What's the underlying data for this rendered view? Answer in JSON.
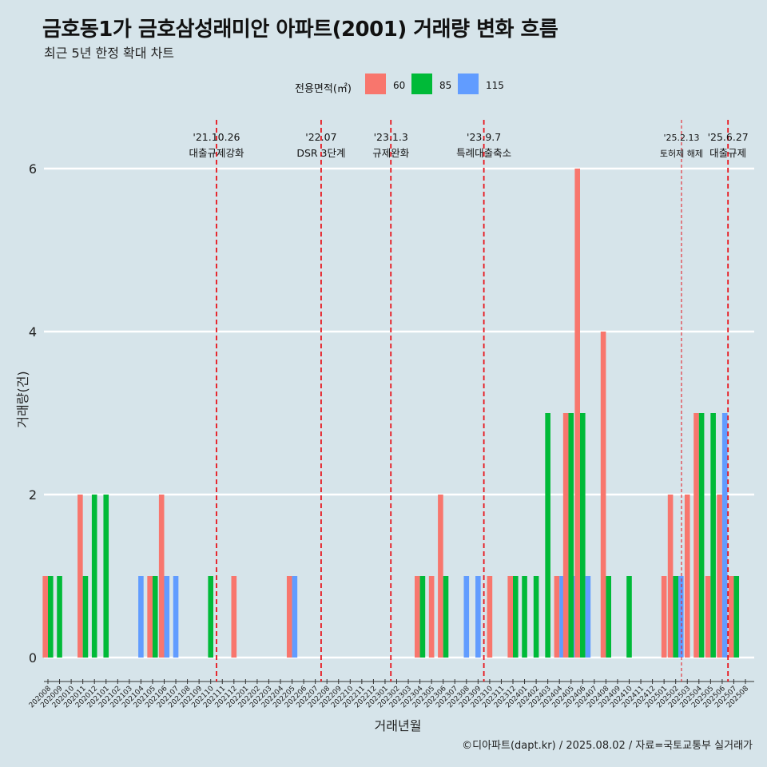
{
  "title": "금호동1가 금호삼성래미안 아파트(2001) 거래량 변화 흐름",
  "subtitle": "최근 5년 한정 확대 차트",
  "caption": "©디아파트(dapt.kr) / 2025.08.02 / 자료=국토교통부 실거래가",
  "legend": {
    "title": "전용면적(㎡)",
    "items": [
      {
        "label": "60",
        "color": "#f8766d"
      },
      {
        "label": "85",
        "color": "#00ba38"
      },
      {
        "label": "115",
        "color": "#619cff"
      }
    ]
  },
  "chart_data": {
    "type": "bar",
    "xlabel": "거래년월",
    "ylabel": "거래량(건)",
    "ylim": [
      0,
      6.3
    ],
    "yticks": [
      0,
      2,
      4,
      6
    ],
    "grid": "horizontal",
    "legend_position": "top",
    "categories": [
      "202008",
      "202009",
      "202010",
      "202011",
      "202012",
      "202101",
      "202102",
      "202103",
      "202104",
      "202105",
      "202106",
      "202107",
      "202108",
      "202109",
      "202110",
      "202111",
      "202112",
      "202201",
      "202202",
      "202203",
      "202204",
      "202205",
      "202206",
      "202207",
      "202208",
      "202209",
      "202210",
      "202211",
      "202212",
      "202301",
      "202302",
      "202303",
      "202304",
      "202305",
      "202306",
      "202307",
      "202308",
      "202309",
      "202310",
      "202311",
      "202312",
      "202401",
      "202402",
      "202403",
      "202404",
      "202405",
      "202406",
      "202407",
      "202408",
      "202409",
      "202410",
      "202411",
      "202412",
      "202501",
      "202502",
      "202503",
      "202504",
      "202505",
      "202506",
      "202507",
      "202508"
    ],
    "series": [
      {
        "name": "60",
        "color": "#f8766d",
        "values": [
          1,
          0,
          0,
          2,
          0,
          0,
          0,
          0,
          0,
          1,
          2,
          0,
          0,
          0,
          0,
          0,
          1,
          0,
          0,
          0,
          0,
          1,
          0,
          0,
          0,
          0,
          0,
          0,
          0,
          0,
          0,
          0,
          1,
          1,
          2,
          0,
          0,
          0,
          1,
          0,
          1,
          0,
          0,
          0,
          1,
          3,
          6,
          0,
          4,
          0,
          0,
          0,
          0,
          1,
          2,
          2,
          3,
          1,
          2,
          1,
          0
        ]
      },
      {
        "name": "85",
        "color": "#00ba38",
        "values": [
          1,
          1,
          0,
          1,
          2,
          2,
          0,
          0,
          0,
          1,
          0,
          0,
          0,
          0,
          1,
          0,
          0,
          0,
          0,
          0,
          0,
          0,
          0,
          0,
          0,
          0,
          0,
          0,
          0,
          0,
          0,
          0,
          1,
          0,
          1,
          0,
          0,
          0,
          0,
          0,
          1,
          1,
          1,
          3,
          0,
          3,
          3,
          0,
          1,
          0,
          1,
          0,
          0,
          0,
          1,
          0,
          3,
          3,
          0,
          1,
          0
        ]
      },
      {
        "name": "115",
        "color": "#619cff",
        "values": [
          0,
          0,
          0,
          0,
          0,
          0,
          0,
          0,
          1,
          0,
          1,
          1,
          0,
          0,
          0,
          0,
          0,
          0,
          0,
          0,
          0,
          1,
          0,
          0,
          0,
          0,
          0,
          0,
          0,
          0,
          0,
          0,
          0,
          0,
          0,
          0,
          1,
          1,
          0,
          0,
          0,
          0,
          0,
          0,
          1,
          1,
          1,
          0,
          0,
          0,
          0,
          0,
          0,
          0,
          1,
          0,
          0,
          0,
          3,
          0,
          0
        ]
      }
    ],
    "annotations": [
      {
        "index": 14.5,
        "line": "dashed",
        "date": "'21.10.26",
        "text": "대출규제강화"
      },
      {
        "index": 23.5,
        "line": "dashed",
        "date": "'22.07",
        "text": "DSR 3단계"
      },
      {
        "index": 29.5,
        "line": "dashed",
        "date": "'23.1.3",
        "text": "규제완화"
      },
      {
        "index": 37.5,
        "line": "dashed",
        "date": "'23.9.7",
        "text": "특례대출축소"
      },
      {
        "index": 54.5,
        "line": "dashed-thin",
        "date": "'25.2.13",
        "text": "토허제 해제"
      },
      {
        "index": 58.5,
        "line": "dashed",
        "date": "'25.6.27",
        "text": "대출규제"
      }
    ]
  }
}
